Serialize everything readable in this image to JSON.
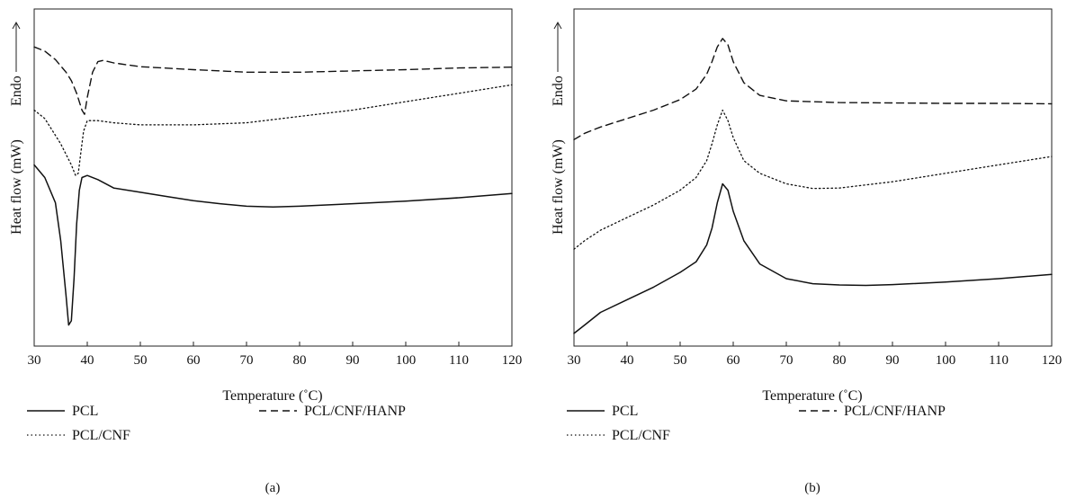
{
  "chart_data": [
    {
      "type": "line",
      "panel_label": "(a)",
      "xlabel": "Temperature (˚C)",
      "ylabel": "Heat flow (mW)",
      "ylabel_endo": "Endo",
      "xlim": [
        30,
        120
      ],
      "x_ticks": [
        "30",
        "40",
        "50",
        "60",
        "70",
        "80",
        "90",
        "100",
        "110",
        "120"
      ],
      "series": [
        {
          "name": "PCL",
          "style": "solid",
          "points": [
            [
              30,
              5.3
            ],
            [
              32,
              5.0
            ],
            [
              34,
              4.4
            ],
            [
              35,
              3.5
            ],
            [
              36,
              2.2
            ],
            [
              36.5,
              1.5
            ],
            [
              37,
              1.6
            ],
            [
              37.5,
              2.6
            ],
            [
              38,
              3.9
            ],
            [
              38.5,
              4.7
            ],
            [
              39,
              5.0
            ],
            [
              40,
              5.05
            ],
            [
              42,
              4.95
            ],
            [
              45,
              4.75
            ],
            [
              50,
              4.65
            ],
            [
              55,
              4.55
            ],
            [
              60,
              4.45
            ],
            [
              65,
              4.38
            ],
            [
              70,
              4.32
            ],
            [
              75,
              4.3
            ],
            [
              80,
              4.32
            ],
            [
              90,
              4.38
            ],
            [
              100,
              4.44
            ],
            [
              110,
              4.52
            ],
            [
              120,
              4.62
            ]
          ]
        },
        {
          "name": "PCL/CNF",
          "style": "dotted",
          "points": [
            [
              30,
              6.6
            ],
            [
              32,
              6.4
            ],
            [
              34,
              6.0
            ],
            [
              35,
              5.8
            ],
            [
              36,
              5.55
            ],
            [
              37,
              5.3
            ],
            [
              37.8,
              5.05
            ],
            [
              38.3,
              5.1
            ],
            [
              38.8,
              5.6
            ],
            [
              39.3,
              6.1
            ],
            [
              40,
              6.35
            ],
            [
              42,
              6.35
            ],
            [
              45,
              6.3
            ],
            [
              50,
              6.25
            ],
            [
              60,
              6.25
            ],
            [
              70,
              6.3
            ],
            [
              80,
              6.45
            ],
            [
              90,
              6.6
            ],
            [
              100,
              6.8
            ],
            [
              110,
              7.0
            ],
            [
              120,
              7.2
            ]
          ]
        },
        {
          "name": "PCL/CNF/HANP",
          "style": "dashed",
          "points": [
            [
              30,
              8.1
            ],
            [
              32,
              8.0
            ],
            [
              34,
              7.8
            ],
            [
              36,
              7.5
            ],
            [
              37,
              7.3
            ],
            [
              38,
              7.0
            ],
            [
              39,
              6.6
            ],
            [
              39.5,
              6.5
            ],
            [
              40,
              6.9
            ],
            [
              41,
              7.5
            ],
            [
              42,
              7.75
            ],
            [
              43,
              7.78
            ],
            [
              45,
              7.72
            ],
            [
              50,
              7.63
            ],
            [
              60,
              7.56
            ],
            [
              70,
              7.5
            ],
            [
              80,
              7.5
            ],
            [
              90,
              7.53
            ],
            [
              100,
              7.56
            ],
            [
              110,
              7.6
            ],
            [
              120,
              7.62
            ]
          ]
        }
      ],
      "legend": [
        {
          "label": "PCL",
          "style": "solid"
        },
        {
          "label": "PCL/CNF/HANP",
          "style": "dashed"
        },
        {
          "label": "PCL/CNF",
          "style": "dotted"
        }
      ]
    },
    {
      "type": "line",
      "panel_label": "(b)",
      "xlabel": "Temperature (˚C)",
      "ylabel": "Heat flow (mW)",
      "ylabel_endo": "Endo",
      "xlim": [
        30,
        120
      ],
      "x_ticks": [
        "30",
        "40",
        "50",
        "60",
        "70",
        "80",
        "90",
        "100",
        "110",
        "120"
      ],
      "series": [
        {
          "name": "PCL",
          "style": "solid",
          "points": [
            [
              30,
              1.3
            ],
            [
              32,
              1.5
            ],
            [
              35,
              1.8
            ],
            [
              40,
              2.1
            ],
            [
              45,
              2.4
            ],
            [
              50,
              2.75
            ],
            [
              53,
              3.0
            ],
            [
              55,
              3.4
            ],
            [
              56,
              3.8
            ],
            [
              57,
              4.4
            ],
            [
              58,
              4.85
            ],
            [
              59,
              4.7
            ],
            [
              60,
              4.2
            ],
            [
              62,
              3.5
            ],
            [
              65,
              2.95
            ],
            [
              70,
              2.6
            ],
            [
              75,
              2.48
            ],
            [
              80,
              2.45
            ],
            [
              85,
              2.44
            ],
            [
              90,
              2.46
            ],
            [
              100,
              2.52
            ],
            [
              110,
              2.6
            ],
            [
              120,
              2.7
            ]
          ]
        },
        {
          "name": "PCL/CNF",
          "style": "dotted",
          "points": [
            [
              30,
              3.3
            ],
            [
              32,
              3.5
            ],
            [
              35,
              3.75
            ],
            [
              40,
              4.05
            ],
            [
              45,
              4.35
            ],
            [
              50,
              4.7
            ],
            [
              53,
              5.0
            ],
            [
              55,
              5.4
            ],
            [
              56,
              5.8
            ],
            [
              57,
              6.25
            ],
            [
              58,
              6.6
            ],
            [
              59,
              6.35
            ],
            [
              60,
              5.95
            ],
            [
              62,
              5.4
            ],
            [
              65,
              5.1
            ],
            [
              70,
              4.85
            ],
            [
              75,
              4.74
            ],
            [
              80,
              4.75
            ],
            [
              90,
              4.9
            ],
            [
              100,
              5.1
            ],
            [
              110,
              5.3
            ],
            [
              120,
              5.5
            ]
          ]
        },
        {
          "name": "PCL/CNF/HANP",
          "style": "dashed",
          "points": [
            [
              30,
              5.9
            ],
            [
              32,
              6.05
            ],
            [
              35,
              6.2
            ],
            [
              40,
              6.4
            ],
            [
              45,
              6.6
            ],
            [
              50,
              6.85
            ],
            [
              53,
              7.1
            ],
            [
              55,
              7.45
            ],
            [
              56,
              7.75
            ],
            [
              57,
              8.1
            ],
            [
              58,
              8.3
            ],
            [
              59,
              8.15
            ],
            [
              60,
              7.75
            ],
            [
              62,
              7.25
            ],
            [
              65,
              6.95
            ],
            [
              70,
              6.82
            ],
            [
              80,
              6.78
            ],
            [
              90,
              6.77
            ],
            [
              100,
              6.76
            ],
            [
              110,
              6.76
            ],
            [
              120,
              6.75
            ]
          ]
        }
      ],
      "legend": [
        {
          "label": "PCL",
          "style": "solid"
        },
        {
          "label": "PCL/CNF/HANP",
          "style": "dashed"
        },
        {
          "label": "PCL/CNF",
          "style": "dotted"
        }
      ]
    }
  ]
}
